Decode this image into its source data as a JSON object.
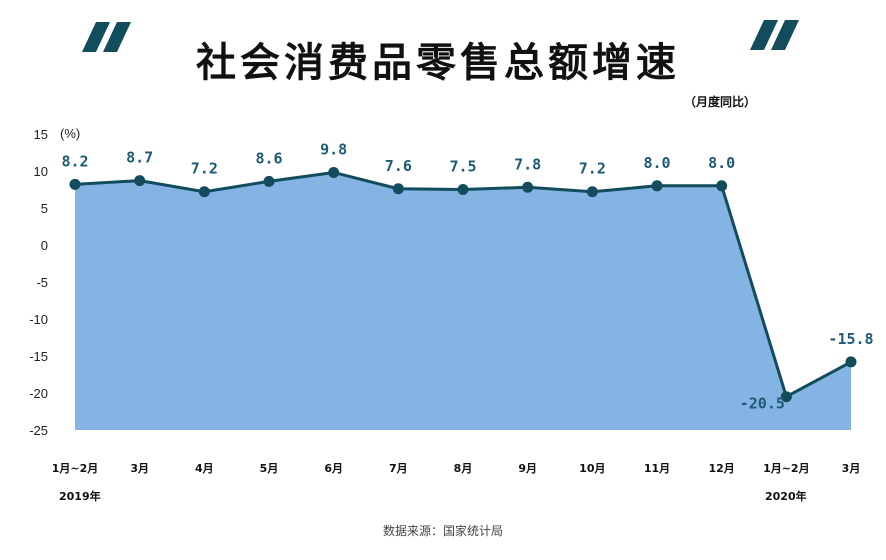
{
  "title": "社会消费品零售总额增速",
  "subtitle": "（月度同比）",
  "source": "数据来源：国家统计局",
  "colors": {
    "quote": "#134c5c",
    "area": "#84b4e3",
    "line": "#134c5c",
    "label": "#1d5a75"
  },
  "chart_data": {
    "type": "area",
    "title": "社会消费品零售总额增速",
    "ylabel": "(%)",
    "xlabel": "",
    "ylim": [
      -25,
      15
    ],
    "yticks": [
      15,
      10,
      5,
      0,
      -5,
      -10,
      -15,
      -20,
      -25
    ],
    "ytick_labels": [
      "15",
      "10",
      "5",
      "0",
      "-5",
      "-10",
      "-15",
      "-20",
      "-25"
    ],
    "categories": [
      "1月~2月",
      "3月",
      "4月",
      "5月",
      "6月",
      "7月",
      "8月",
      "9月",
      "10月",
      "11月",
      "12月",
      "1月~2月",
      "3月"
    ],
    "values": [
      8.2,
      8.7,
      7.2,
      8.6,
      9.8,
      7.6,
      7.5,
      7.8,
      7.2,
      8.0,
      8.0,
      -20.5,
      -15.8
    ],
    "data_labels": [
      "8.2",
      "8.7",
      "7.2",
      "8.6",
      "9.8",
      "7.6",
      "7.5",
      "7.8",
      "7.2",
      "8.0",
      "8.0",
      "-20.5",
      "-15.8"
    ],
    "year_labels": [
      "2019年",
      "2020年"
    ],
    "grid": false,
    "legend": "none"
  }
}
